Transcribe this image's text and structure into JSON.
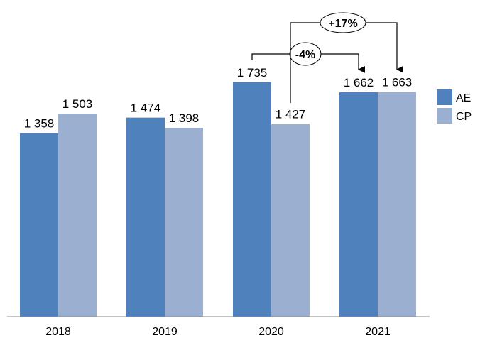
{
  "chart_data": {
    "type": "bar",
    "categories": [
      "2018",
      "2019",
      "2020",
      "2021"
    ],
    "series": [
      {
        "name": "AE",
        "values": [
          1358,
          1474,
          1735,
          1662
        ],
        "color": "#4f81bd"
      },
      {
        "name": "CP",
        "values": [
          1503,
          1398,
          1427,
          1663
        ],
        "color": "#9bb0d0"
      }
    ],
    "data_labels": {
      "AE": [
        "1 358",
        "1 474",
        "1 735",
        "1 662"
      ],
      "CP": [
        "1 503",
        "1 398",
        "1 427",
        "1 663"
      ]
    },
    "ylim": [
      0,
      1735
    ],
    "grid": false,
    "legend": "right",
    "annotations": [
      {
        "label": "-4%",
        "from": {
          "series": "AE",
          "category": "2020"
        },
        "to": {
          "series": "AE",
          "category": "2021"
        }
      },
      {
        "label": "+17%",
        "from": {
          "series": "CP",
          "category": "2020"
        },
        "to": {
          "series": "CP",
          "category": "2021"
        }
      }
    ]
  }
}
